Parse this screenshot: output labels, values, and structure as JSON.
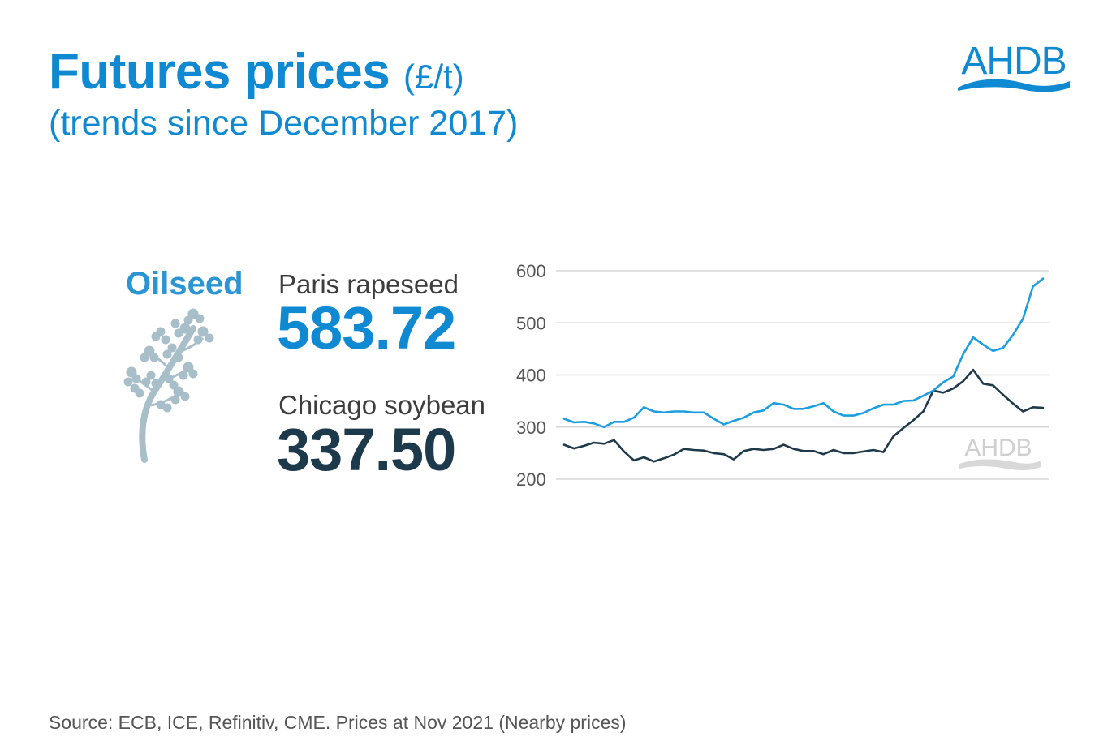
{
  "header": {
    "title": "Futures prices",
    "unit": "(£/t)",
    "subtitle": "(trends since December 2017)"
  },
  "logo": {
    "text": "AHDB"
  },
  "section": {
    "label": "Oilseed"
  },
  "items": [
    {
      "label": "Paris rapeseed",
      "value": "583.72",
      "color": "#0f8ad2"
    },
    {
      "label": "Chicago soybean",
      "value": "337.50",
      "color": "#1c3a4c"
    }
  ],
  "chart_data": {
    "type": "line",
    "title": "",
    "xlabel": "",
    "ylabel": "",
    "ylim": [
      200,
      600
    ],
    "yticks": [
      200,
      300,
      400,
      500,
      600
    ],
    "grid": true,
    "watermark": "AHDB",
    "series": [
      {
        "name": "Paris rapeseed",
        "color": "#1b9ee0",
        "values": [
          316,
          309,
          310,
          307,
          300,
          310,
          310,
          318,
          338,
          330,
          328,
          330,
          330,
          328,
          328,
          316,
          305,
          312,
          318,
          328,
          332,
          346,
          343,
          335,
          335,
          340,
          346,
          330,
          322,
          322,
          327,
          336,
          343,
          343,
          350,
          351,
          360,
          370,
          386,
          397,
          440,
          472,
          458,
          446,
          452,
          477,
          508,
          570,
          585
        ]
      },
      {
        "name": "Chicago soybean",
        "color": "#1e3a4a",
        "values": [
          266,
          259,
          264,
          270,
          268,
          275,
          253,
          236,
          242,
          234,
          240,
          247,
          258,
          256,
          255,
          250,
          248,
          238,
          254,
          258,
          256,
          258,
          266,
          258,
          254,
          254,
          248,
          256,
          250,
          250,
          253,
          256,
          252,
          282,
          298,
          313,
          330,
          370,
          366,
          374,
          388,
          410,
          383,
          380,
          362,
          345,
          330,
          338,
          337
        ]
      }
    ]
  },
  "source": "Source: ECB, ICE, Refinitiv, CME. Prices at Nov 2021 (Nearby prices)"
}
